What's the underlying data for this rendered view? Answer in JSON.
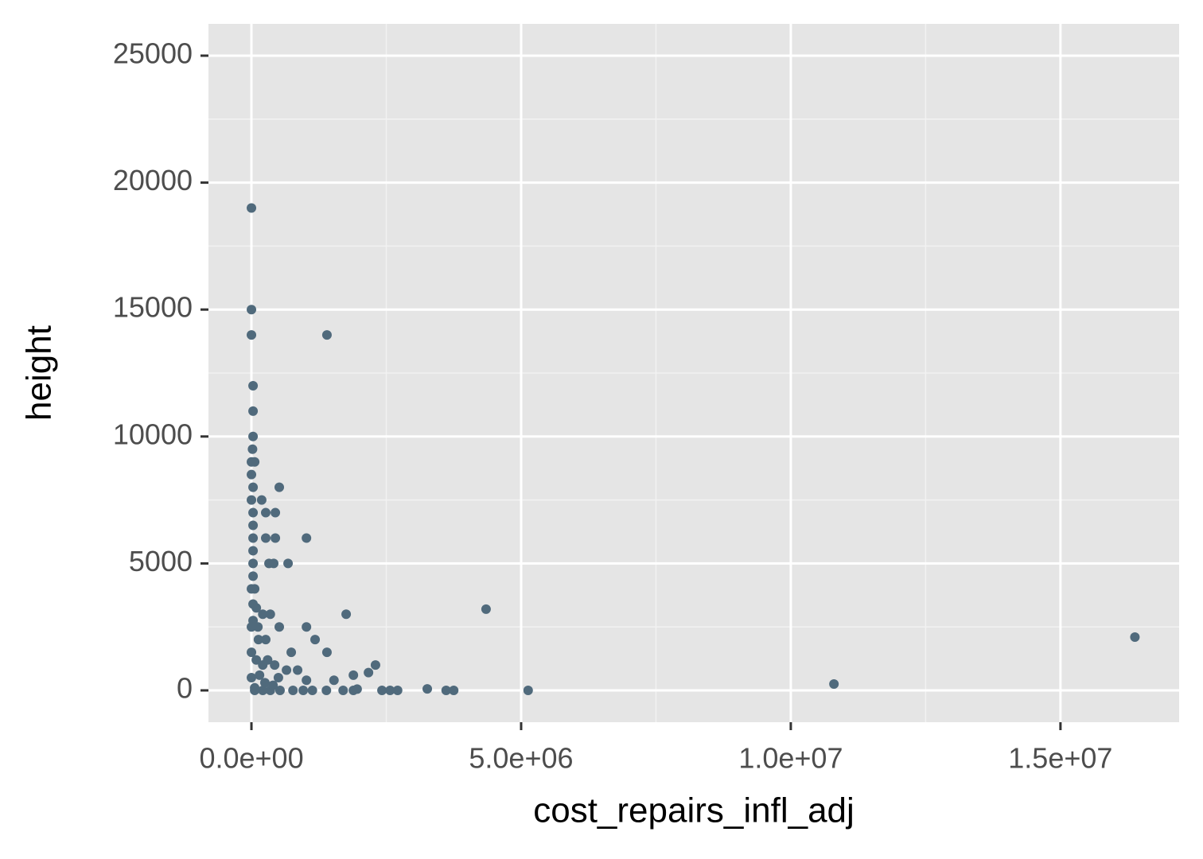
{
  "chart_data": {
    "type": "scatter",
    "x_label": "cost_repairs_infl_adj",
    "y_label": "height",
    "color": "#506a7c",
    "grid": true,
    "xlim": [
      -797000,
      17200000
    ],
    "ylim": [
      -1253,
      26253
    ],
    "xticks": [
      {
        "value": 0,
        "label": "0.0e+00"
      },
      {
        "value": 5000000,
        "label": "5.0e+06"
      },
      {
        "value": 10000000,
        "label": "1.0e+07"
      },
      {
        "value": 15000000,
        "label": "1.5e+07"
      }
    ],
    "yticks": [
      0,
      5000,
      10000,
      15000,
      20000,
      25000
    ],
    "xminor": [
      2500000,
      7500000,
      12500000
    ],
    "yminor": [
      2500,
      7500,
      12500,
      17500,
      22500
    ],
    "x": [
      0,
      0,
      0,
      1400000,
      30000,
      30000,
      30000,
      20000,
      0,
      60000,
      0,
      30000,
      516000,
      0,
      190000,
      30000,
      265000,
      443000,
      30000,
      30000,
      265000,
      443000,
      1020000,
      30000,
      325000,
      413000,
      679000,
      30000,
      60000,
      30000,
      90000,
      1756000,
      4350000,
      16380000,
      10800000,
      5130000,
      516000,
      1020000,
      1180000,
      265000,
      1400000,
      738000,
      2300000,
      2170000,
      1890000,
      856000,
      650000,
      1020000,
      1530000,
      3260000,
      3610000,
      3750000,
      2420000,
      2570000,
      2710000,
      1960000,
      1890000,
      1700000,
      1390000,
      1130000,
      960000,
      770000,
      530000,
      350000,
      210000,
      30000,
      210000,
      350000,
      0,
      130000,
      0,
      210000,
      430000,
      0,
      500000,
      60000,
      30000,
      0,
      90000,
      150000,
      250000,
      400000,
      120000,
      300000,
      60000
    ],
    "values": [
      19000,
      15000,
      14000,
      14000,
      12000,
      11000,
      10000,
      9500,
      9000,
      9000,
      8500,
      8000,
      8000,
      7500,
      7500,
      7000,
      7000,
      7000,
      6500,
      6000,
      6000,
      6000,
      6000,
      5000,
      5000,
      5000,
      5000,
      4500,
      4000,
      3400,
      3250,
      3000,
      3200,
      2100,
      250,
      0,
      2500,
      2500,
      2000,
      2000,
      1500,
      1500,
      1000,
      700,
      600,
      800,
      800,
      400,
      400,
      60,
      0,
      0,
      0,
      0,
      0,
      50,
      0,
      0,
      0,
      0,
      0,
      0,
      0,
      0,
      0,
      2750,
      3000,
      3000,
      2500,
      2000,
      1500,
      1000,
      1000,
      500,
      500,
      0,
      5500,
      4000,
      1200,
      600,
      300,
      200,
      2500,
      1200,
      100
    ]
  }
}
